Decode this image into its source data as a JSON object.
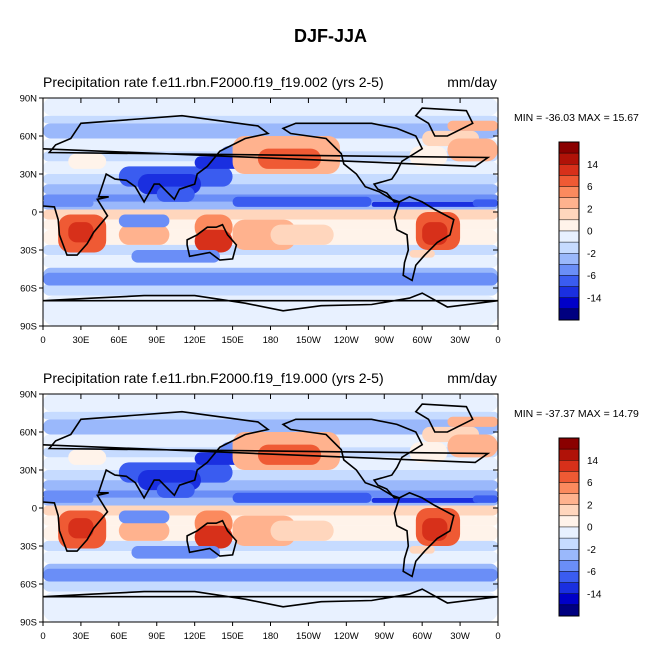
{
  "page_title": "DJF-JJA",
  "colors": {
    "scale": [
      "#000080",
      "#0000c8",
      "#1a2fe0",
      "#3a5cf0",
      "#6a8ef7",
      "#9ab8fb",
      "#c6dbff",
      "#e8f1ff",
      "#fff3ea",
      "#ffd6bd",
      "#ffb28e",
      "#fb8a5e",
      "#ef5a34",
      "#d7301a",
      "#b01208",
      "#8a0000"
    ],
    "land_outline": "#000000",
    "background": "#ffffff"
  },
  "colorbar": {
    "labels": [
      "14",
      "6",
      "2",
      "0",
      "-2",
      "-6",
      "-14"
    ]
  },
  "lat_labels": [
    "90N",
    "60N",
    "30N",
    "0",
    "30S",
    "60S",
    "90S"
  ],
  "lon_labels": [
    "0",
    "30E",
    "60E",
    "90E",
    "120E",
    "150E",
    "180",
    "150W",
    "120W",
    "90W",
    "60W",
    "30W",
    "0"
  ],
  "panels": [
    {
      "title": "Precipitation rate f.e11.rbn.F2000.f19_f19.002 (yrs 2-5)",
      "units": "mm/day",
      "minmax": "MIN = -36.03 MAX =  15.67"
    },
    {
      "title": "Precipitation rate f.e11.rbn.F2000.f19_f19.000 (yrs 2-5)",
      "units": "mm/day",
      "minmax": "MIN = -37.37 MAX =  14.79"
    }
  ]
}
